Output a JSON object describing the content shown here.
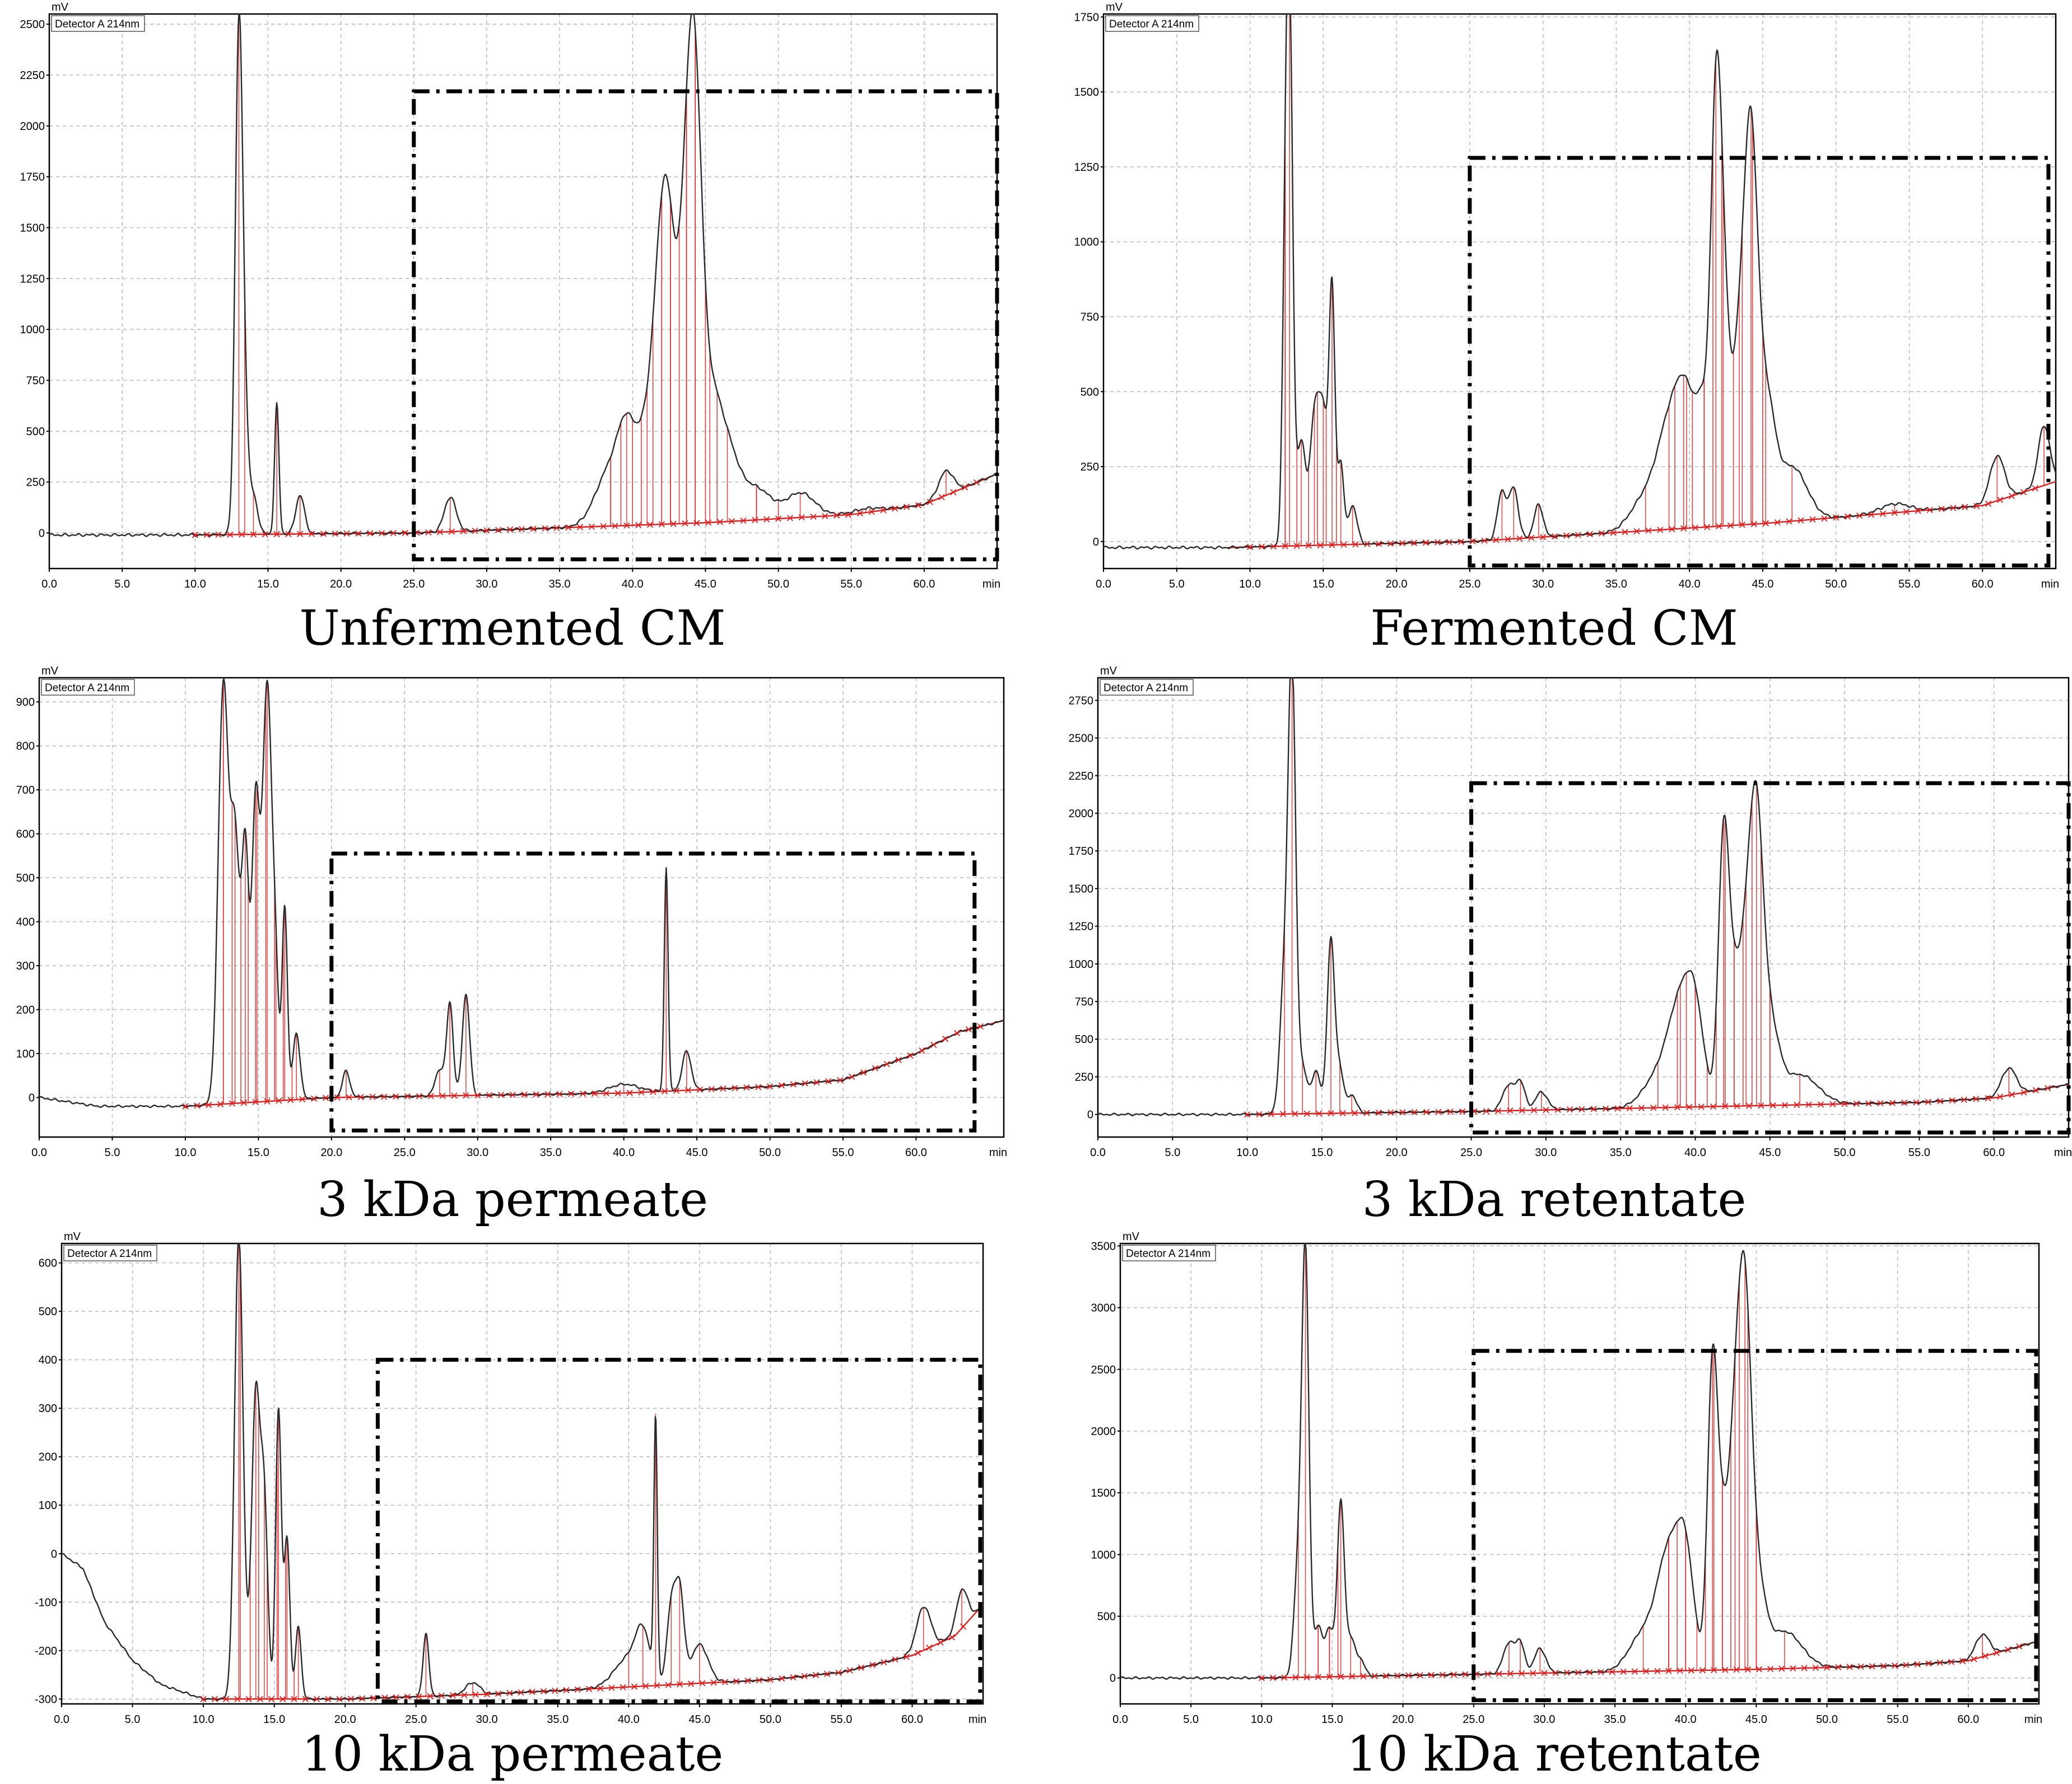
{
  "chart_data": [
    {
      "type": "line",
      "title": "Unfermented CM",
      "unit_label": "mV",
      "detector_label": "Detector A 214nm",
      "x_unit": "min",
      "xlim": [
        0,
        65
      ],
      "ylim": [
        -175,
        2550
      ],
      "yticks": [
        0,
        250,
        500,
        750,
        1000,
        1250,
        1500,
        1750,
        2000,
        2250,
        2500
      ],
      "xticks": [
        0,
        5,
        10,
        15,
        20,
        25,
        30,
        35,
        40,
        45,
        50,
        55,
        60
      ],
      "box": {
        "x": [
          25.0,
          65.0
        ],
        "y": [
          -130,
          2170
        ]
      },
      "baseline": [
        [
          10,
          -10
        ],
        [
          25,
          0
        ],
        [
          45,
          50
        ],
        [
          55,
          90
        ],
        [
          60,
          140
        ],
        [
          65,
          290
        ]
      ],
      "peaks": [
        [
          13.0,
          2440,
          0.25
        ],
        [
          13.4,
          480,
          0.25
        ],
        [
          14.0,
          180,
          0.3
        ],
        [
          15.6,
          640,
          0.15
        ],
        [
          17.2,
          190,
          0.3
        ],
        [
          27.5,
          170,
          0.4
        ],
        [
          38.5,
          280,
          1.0
        ],
        [
          39.6,
          340,
          0.6
        ],
        [
          41.0,
          440,
          0.7
        ],
        [
          42.0,
          1080,
          0.55
        ],
        [
          42.6,
          780,
          0.5
        ],
        [
          43.7,
          1280,
          0.55
        ],
        [
          44.3,
          1520,
          0.5
        ],
        [
          45.3,
          520,
          0.7
        ],
        [
          46.5,
          320,
          0.8
        ],
        [
          48.5,
          150,
          1.0
        ],
        [
          51.5,
          120,
          1.0
        ],
        [
          56.0,
          20,
          1.0
        ],
        [
          61.5,
          120,
          0.5
        ]
      ],
      "drops": [
        38.5,
        39.2,
        40.0,
        40.6,
        41.4,
        42.0,
        42.6,
        43.2,
        43.7,
        44.3,
        45.0,
        45.8,
        48.5,
        50.0
      ]
    },
    {
      "type": "line",
      "title": "Fermented CM",
      "unit_label": "mV",
      "detector_label": "Detector A 214nm",
      "x_unit": "min",
      "xlim": [
        0,
        65
      ],
      "ylim": [
        -90,
        1760
      ],
      "yticks": [
        0,
        250,
        500,
        750,
        1000,
        1250,
        1500,
        1750
      ],
      "xticks": [
        0,
        5,
        10,
        15,
        20,
        25,
        30,
        35,
        40,
        45,
        50,
        55,
        60
      ],
      "box": {
        "x": [
          25.0,
          64.5
        ],
        "y": [
          -80,
          1280
        ]
      },
      "baseline": [
        [
          8.5,
          -20
        ],
        [
          25,
          0
        ],
        [
          45,
          60
        ],
        [
          55,
          100
        ],
        [
          60,
          120
        ],
        [
          65,
          200
        ]
      ],
      "peaks": [
        [
          12.4,
          740,
          0.2
        ],
        [
          12.7,
          1740,
          0.22
        ],
        [
          13.5,
          350,
          0.3
        ],
        [
          14.4,
          420,
          0.3
        ],
        [
          15.0,
          420,
          0.3
        ],
        [
          15.6,
          830,
          0.2
        ],
        [
          16.2,
          270,
          0.2
        ],
        [
          17.0,
          130,
          0.3
        ],
        [
          27.2,
          160,
          0.3
        ],
        [
          28.0,
          170,
          0.3
        ],
        [
          29.7,
          110,
          0.3
        ],
        [
          37.0,
          110,
          1.0
        ],
        [
          38.6,
          300,
          0.8
        ],
        [
          39.8,
          380,
          0.7
        ],
        [
          41.0,
          330,
          0.5
        ],
        [
          41.8,
          1150,
          0.35
        ],
        [
          42.3,
          680,
          0.4
        ],
        [
          43.4,
          550,
          0.5
        ],
        [
          44.2,
          1130,
          0.45
        ],
        [
          45.2,
          400,
          0.6
        ],
        [
          47.0,
          180,
          1.0
        ],
        [
          54.0,
          30,
          1.0
        ],
        [
          61.0,
          150,
          0.5
        ],
        [
          64.2,
          200,
          0.4
        ]
      ],
      "drops": [
        12.4,
        13.2,
        14.0,
        14.6,
        15.2,
        15.9,
        39.0,
        39.6,
        40.2,
        41.0,
        41.6,
        42.2,
        43.0,
        43.6,
        44.3,
        45.0
      ]
    },
    {
      "type": "line",
      "title": "3 kDa permeate",
      "unit_label": "mV",
      "detector_label": "Detector A 214nm",
      "x_unit": "min",
      "xlim": [
        0,
        66
      ],
      "ylim": [
        -90,
        955
      ],
      "yticks": [
        0,
        100,
        200,
        300,
        400,
        500,
        600,
        700,
        800,
        900
      ],
      "xticks": [
        0,
        5,
        10,
        15,
        20,
        25,
        30,
        35,
        40,
        45,
        50,
        55,
        60
      ],
      "box": {
        "x": [
          20.0,
          64.0
        ],
        "y": [
          -75,
          555
        ]
      },
      "baseline": [
        [
          0,
          0
        ],
        [
          4,
          -20
        ],
        [
          10,
          -20
        ],
        [
          20,
          0
        ],
        [
          40,
          10
        ],
        [
          50,
          25
        ],
        [
          55,
          40
        ],
        [
          60,
          100
        ],
        [
          63,
          150
        ],
        [
          66,
          175
        ]
      ],
      "peaks": [
        [
          12.6,
          950,
          0.35
        ],
        [
          13.4,
          580,
          0.3
        ],
        [
          14.1,
          570,
          0.25
        ],
        [
          14.8,
          640,
          0.25
        ],
        [
          15.6,
          950,
          0.35
        ],
        [
          16.2,
          180,
          0.2
        ],
        [
          16.8,
          440,
          0.18
        ],
        [
          17.6,
          150,
          0.25
        ],
        [
          21.0,
          60,
          0.25
        ],
        [
          27.4,
          60,
          0.3
        ],
        [
          28.1,
          210,
          0.22
        ],
        [
          29.2,
          230,
          0.25
        ],
        [
          40.0,
          20,
          1.0
        ],
        [
          42.9,
          510,
          0.13
        ],
        [
          44.3,
          90,
          0.3
        ]
      ],
      "drops": [
        12.6,
        13.2,
        13.8,
        14.3,
        14.9,
        15.5,
        16.1,
        16.7,
        17.3
      ]
    },
    {
      "type": "line",
      "title": "3 kDa retentate",
      "unit_label": "mV",
      "detector_label": "Detector A 214nm",
      "x_unit": "min",
      "xlim": [
        0,
        65
      ],
      "ylim": [
        -150,
        2900
      ],
      "yticks": [
        0,
        250,
        500,
        750,
        1000,
        1250,
        1500,
        1750,
        2000,
        2250,
        2500,
        2750
      ],
      "xticks": [
        0,
        5,
        10,
        15,
        20,
        25,
        30,
        35,
        40,
        45,
        50,
        55,
        60
      ],
      "box": {
        "x": [
          25.0,
          65.0
        ],
        "y": [
          -120,
          2200
        ]
      },
      "baseline": [
        [
          0,
          0
        ],
        [
          10,
          0
        ],
        [
          25,
          20
        ],
        [
          45,
          60
        ],
        [
          55,
          80
        ],
        [
          60,
          110
        ],
        [
          65,
          200
        ]
      ],
      "peaks": [
        [
          12.5,
          900,
          0.3
        ],
        [
          13.0,
          2850,
          0.25
        ],
        [
          13.7,
          300,
          0.3
        ],
        [
          14.6,
          280,
          0.3
        ],
        [
          15.6,
          1150,
          0.25
        ],
        [
          16.2,
          280,
          0.25
        ],
        [
          17.0,
          120,
          0.3
        ],
        [
          27.5,
          170,
          0.4
        ],
        [
          28.3,
          180,
          0.3
        ],
        [
          29.7,
          120,
          0.4
        ],
        [
          37.5,
          200,
          1.0
        ],
        [
          39.0,
          620,
          0.8
        ],
        [
          40.0,
          520,
          0.6
        ],
        [
          41.9,
          1770,
          0.35
        ],
        [
          42.6,
          680,
          0.4
        ],
        [
          43.4,
          880,
          0.45
        ],
        [
          44.1,
          1700,
          0.45
        ],
        [
          45.0,
          500,
          0.6
        ],
        [
          47.0,
          200,
          1.2
        ],
        [
          61.0,
          180,
          0.5
        ]
      ],
      "drops": [
        38.8,
        39.4,
        40.0,
        40.8,
        41.4,
        42.0,
        42.6,
        43.2,
        43.8,
        44.4,
        45.0
      ]
    },
    {
      "type": "line",
      "title": "10 kDa permeate",
      "unit_label": "mV",
      "detector_label": "Detector A 214nm",
      "x_unit": "min",
      "xlim": [
        0,
        65
      ],
      "ylim": [
        -310,
        640
      ],
      "yticks": [
        -300,
        -200,
        -100,
        0,
        100,
        200,
        300,
        400,
        500,
        600
      ],
      "xticks": [
        0,
        5,
        10,
        15,
        20,
        25,
        30,
        35,
        40,
        45,
        50,
        55,
        60
      ],
      "box": {
        "x": [
          22.3,
          64.8
        ],
        "y": [
          -305,
          400
        ]
      },
      "baseline": [
        [
          0,
          0
        ],
        [
          1.5,
          -30
        ],
        [
          3,
          -140
        ],
        [
          5,
          -220
        ],
        [
          7,
          -270
        ],
        [
          10,
          -300
        ],
        [
          20,
          -300
        ],
        [
          30,
          -290
        ],
        [
          40,
          -275
        ],
        [
          50,
          -260
        ],
        [
          55,
          -245
        ],
        [
          60,
          -210
        ],
        [
          63,
          -170
        ],
        [
          65,
          -105
        ]
      ],
      "peaks": [
        [
          12.5,
          960,
          0.3
        ],
        [
          13.7,
          630,
          0.3
        ],
        [
          14.3,
          380,
          0.25
        ],
        [
          15.3,
          600,
          0.2
        ],
        [
          15.9,
          330,
          0.2
        ],
        [
          16.7,
          150,
          0.2
        ],
        [
          25.7,
          130,
          0.2
        ],
        [
          29.0,
          25,
          0.5
        ],
        [
          40.0,
          60,
          1.0
        ],
        [
          41.0,
          90,
          0.5
        ],
        [
          41.9,
          535,
          0.12
        ],
        [
          43.0,
          160,
          0.3
        ],
        [
          43.6,
          190,
          0.3
        ],
        [
          45.0,
          80,
          0.6
        ],
        [
          60.8,
          90,
          0.5
        ],
        [
          63.5,
          80,
          0.4
        ]
      ],
      "drops": [
        12.6,
        13.3,
        13.9,
        14.5,
        15.2,
        15.8,
        16.4
      ]
    },
    {
      "type": "line",
      "title": "10 kDa retentate",
      "unit_label": "mV",
      "detector_label": "Detector A 214nm",
      "x_unit": "min",
      "xlim": [
        0,
        65
      ],
      "ylim": [
        -210,
        3520
      ],
      "yticks": [
        0,
        500,
        1000,
        1500,
        2000,
        2500,
        3000,
        3500
      ],
      "xticks": [
        0,
        5,
        10,
        15,
        20,
        25,
        30,
        35,
        40,
        45,
        50,
        55,
        60
      ],
      "box": {
        "x": [
          25.0,
          64.8
        ],
        "y": [
          -180,
          2650
        ]
      },
      "baseline": [
        [
          0,
          0
        ],
        [
          10,
          0
        ],
        [
          25,
          30
        ],
        [
          45,
          70
        ],
        [
          55,
          100
        ],
        [
          60,
          140
        ],
        [
          65,
          300
        ]
      ],
      "peaks": [
        [
          12.6,
          900,
          0.3
        ],
        [
          13.1,
          3320,
          0.25
        ],
        [
          14.0,
          400,
          0.3
        ],
        [
          14.8,
          380,
          0.3
        ],
        [
          15.6,
          1400,
          0.25
        ],
        [
          16.3,
          300,
          0.3
        ],
        [
          17.0,
          130,
          0.3
        ],
        [
          27.5,
          250,
          0.4
        ],
        [
          28.3,
          240,
          0.3
        ],
        [
          29.7,
          200,
          0.4
        ],
        [
          37.0,
          300,
          1.0
        ],
        [
          38.8,
          900,
          0.8
        ],
        [
          40.0,
          850,
          0.6
        ],
        [
          41.9,
          2400,
          0.35
        ],
        [
          42.6,
          1000,
          0.4
        ],
        [
          43.5,
          1700,
          0.45
        ],
        [
          44.2,
          2500,
          0.45
        ],
        [
          45.0,
          700,
          0.6
        ],
        [
          47.0,
          300,
          1.2
        ],
        [
          61.0,
          180,
          0.5
        ]
      ],
      "drops": [
        14.0,
        14.8,
        15.4,
        38.8,
        39.4,
        40.0,
        40.8,
        41.4,
        42.0,
        42.6,
        43.2,
        43.8,
        44.4,
        45.0
      ]
    }
  ],
  "colors": {
    "trace": "#2a2a2a",
    "peak_marker": "#e02020",
    "grid": "#b8b8b8",
    "box": "#000000"
  }
}
